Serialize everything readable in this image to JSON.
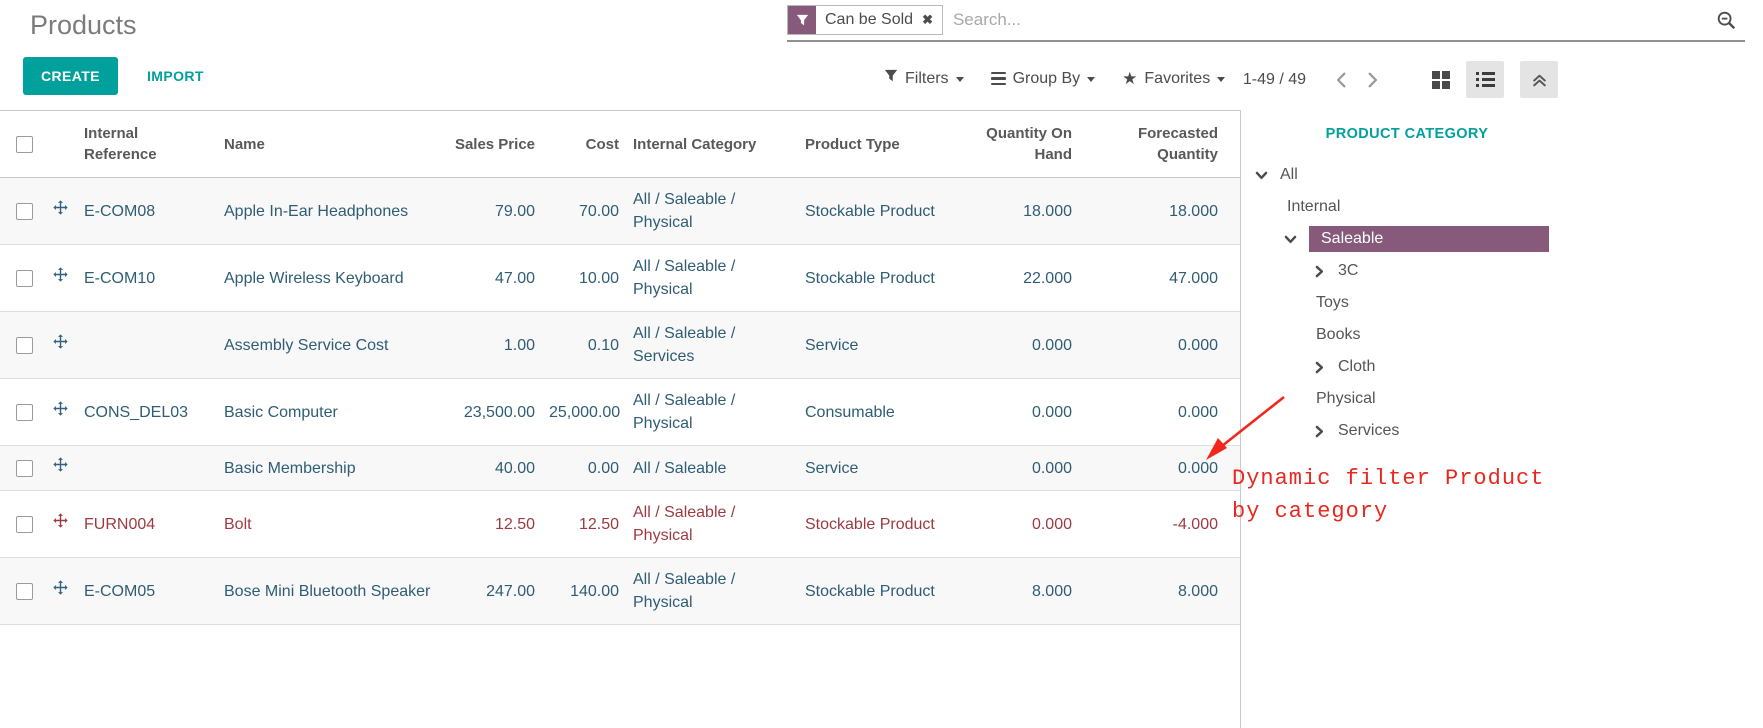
{
  "page": {
    "title": "Products"
  },
  "search": {
    "facet_label": "Can be Sold",
    "placeholder": "Search..."
  },
  "icons": {
    "remove_x": "✖",
    "favorites_star": "★"
  },
  "toolbar": {
    "create_label": "CREATE",
    "import_label": "IMPORT",
    "filters_label": "Filters",
    "group_by_label": "Group By",
    "favorites_label": "Favorites",
    "pager": "1-49 / 49"
  },
  "table": {
    "columns": [
      "Internal Reference",
      "Name",
      "Sales Price",
      "Cost",
      "Internal Category",
      "Product Type",
      "Quantity On Hand",
      "Forecasted Quantity"
    ],
    "rows": [
      {
        "ref": "E-COM08",
        "name": "Apple In-Ear Headphones",
        "sales_price": "79.00",
        "cost": "70.00",
        "category": "All / Saleable / Physical",
        "type": "Stockable Product",
        "qty_on_hand": "18.000",
        "forecasted": "18.000",
        "danger": false
      },
      {
        "ref": "E-COM10",
        "name": "Apple Wireless Keyboard",
        "sales_price": "47.00",
        "cost": "10.00",
        "category": "All / Saleable / Physical",
        "type": "Stockable Product",
        "qty_on_hand": "22.000",
        "forecasted": "47.000",
        "danger": false
      },
      {
        "ref": "",
        "name": "Assembly Service Cost",
        "sales_price": "1.00",
        "cost": "0.10",
        "category": "All / Saleable / Services",
        "type": "Service",
        "qty_on_hand": "0.000",
        "forecasted": "0.000",
        "danger": false
      },
      {
        "ref": "CONS_DEL03",
        "name": "Basic Computer",
        "sales_price": "23,500.00",
        "cost": "25,000.00",
        "category": "All / Saleable / Physical",
        "type": "Consumable",
        "qty_on_hand": "0.000",
        "forecasted": "0.000",
        "danger": false
      },
      {
        "ref": "",
        "name": "Basic Membership",
        "sales_price": "40.00",
        "cost": "0.00",
        "category": "All / Saleable",
        "type": "Service",
        "qty_on_hand": "0.000",
        "forecasted": "0.000",
        "danger": false
      },
      {
        "ref": "FURN004",
        "name": "Bolt",
        "sales_price": "12.50",
        "cost": "12.50",
        "category": "All / Saleable / Physical",
        "type": "Stockable Product",
        "qty_on_hand": "0.000",
        "forecasted": "-4.000",
        "danger": true
      },
      {
        "ref": "E-COM05",
        "name": "Bose Mini Bluetooth Speaker",
        "sales_price": "247.00",
        "cost": "140.00",
        "category": "All / Saleable / Physical",
        "type": "Stockable Product",
        "qty_on_hand": "8.000",
        "forecasted": "8.000",
        "danger": false
      }
    ]
  },
  "sidebar": {
    "title": "PRODUCT CATEGORY",
    "items": [
      {
        "label": "All",
        "level": 0,
        "toggle": "down",
        "selected": false
      },
      {
        "label": "Internal",
        "level": 1,
        "toggle": "none",
        "selected": false
      },
      {
        "label": "Saleable",
        "level": 1,
        "toggle": "down",
        "selected": true
      },
      {
        "label": "3C",
        "level": 2,
        "toggle": "right",
        "selected": false
      },
      {
        "label": "Toys",
        "level": 2,
        "toggle": "none",
        "selected": false
      },
      {
        "label": "Books",
        "level": 2,
        "toggle": "none",
        "selected": false
      },
      {
        "label": "Cloth",
        "level": 2,
        "toggle": "right",
        "selected": false
      },
      {
        "label": "Physical",
        "level": 2,
        "toggle": "none",
        "selected": false
      },
      {
        "label": "Services",
        "level": 2,
        "toggle": "right",
        "selected": false
      }
    ]
  },
  "annotation": {
    "line1": "Dynamic filter Product",
    "line2": "by category",
    "color": "#e8281e"
  },
  "colors": {
    "accent_teal": "#00a09d",
    "facet_purple": "#875a7b",
    "row_text": "#2f5d74",
    "danger_red": "#9d3a41"
  }
}
